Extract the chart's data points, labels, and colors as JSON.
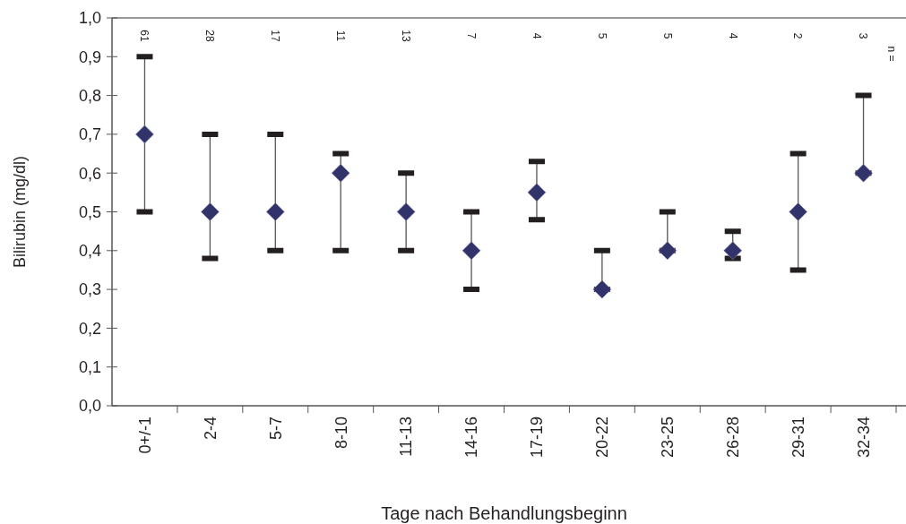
{
  "chart_data": {
    "type": "scatter",
    "xlabel": "Tage nach Behandlungsbeginn",
    "ylabel": "Bilirubin (mg/dl)",
    "categories": [
      "0+/-1",
      "2-4",
      "5-7",
      "8-10",
      "11-13",
      "14-16",
      "17-19",
      "20-22",
      "23-25",
      "26-28",
      "29-31",
      "32-34"
    ],
    "series": [
      {
        "color": "#33336b",
        "values": [
          0.7,
          0.5,
          0.5,
          0.6,
          0.5,
          0.4,
          0.55,
          0.3,
          0.4,
          0.4,
          0.5,
          0.6
        ],
        "errors": [
          [
            0.5,
            0.9
          ],
          [
            0.38,
            0.7
          ],
          [
            0.4,
            0.7
          ],
          [
            0.4,
            0.65
          ],
          [
            0.4,
            0.6
          ],
          [
            0.3,
            0.5
          ],
          [
            0.48,
            0.63
          ],
          [
            0.3,
            0.4
          ],
          [
            0.4,
            0.5
          ],
          [
            0.38,
            0.45
          ],
          [
            0.35,
            0.65
          ],
          [
            0.6,
            0.8
          ]
        ]
      }
    ],
    "ylim": [
      0,
      1
    ],
    "yticks": [
      {
        "value": 0,
        "label": "0,0"
      },
      {
        "value": 0.1,
        "label": "0,1"
      },
      {
        "value": 0.2,
        "label": "0,2"
      },
      {
        "value": 0.3,
        "label": "0,3"
      },
      {
        "value": 0.4,
        "label": "0,4"
      },
      {
        "value": 0.5,
        "label": "0,5"
      },
      {
        "value": 0.6,
        "label": "0,6"
      },
      {
        "value": 0.7,
        "label": "0,7"
      },
      {
        "value": 0.8,
        "label": "0,8"
      },
      {
        "value": 0.9,
        "label": "0,9"
      },
      {
        "value": 1,
        "label": "1,0"
      }
    ],
    "marker": "diamond",
    "grid": false,
    "annotations": [
      "61",
      "28",
      "17",
      "11",
      "13",
      "7",
      "4",
      "5",
      "5",
      "4",
      "2",
      "3",
      "n ="
    ]
  }
}
